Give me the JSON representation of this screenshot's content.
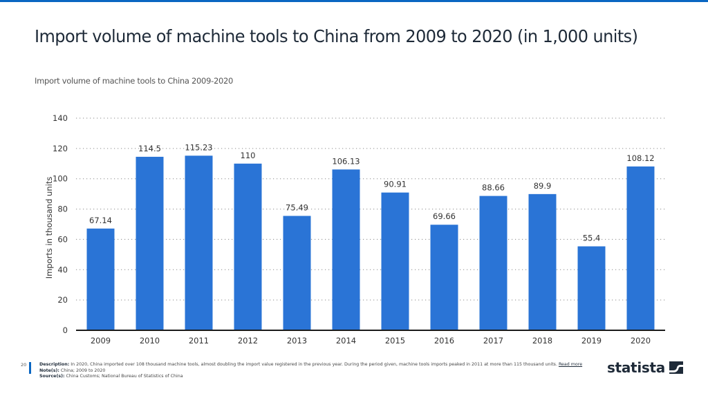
{
  "header": {
    "title": "Import volume of machine tools to China from 2009 to 2020 (in 1,000 units)",
    "subtitle": "Import volume of machine tools to China 2009-2020"
  },
  "chart_data": {
    "type": "bar",
    "title": "Import volume of machine tools to China 2009-2020",
    "xlabel": "",
    "ylabel": "Imports in thousand units",
    "categories": [
      "2009",
      "2010",
      "2011",
      "2012",
      "2013",
      "2014",
      "2015",
      "2016",
      "2017",
      "2018",
      "2019",
      "2020"
    ],
    "values": [
      67.14,
      114.5,
      115.23,
      110,
      75.49,
      106.13,
      90.91,
      69.66,
      88.66,
      89.9,
      55.4,
      108.12
    ],
    "value_labels": [
      "67.14",
      "114.5",
      "115.23",
      "110",
      "75.49",
      "106.13",
      "90.91",
      "69.66",
      "88.66",
      "89.9",
      "55.4",
      "108.12"
    ],
    "ylim": [
      0,
      140
    ],
    "yticks": [
      "0",
      "20",
      "40",
      "60",
      "80",
      "100",
      "120",
      "140"
    ],
    "ytick_values": [
      0,
      20,
      40,
      60,
      80,
      100,
      120,
      140
    ],
    "grid": true,
    "legend": "none",
    "bar_color": "#2a74d6"
  },
  "footer": {
    "page_number": "20",
    "description_label": "Description:",
    "description_text": " In 2020, China imported over 108 thousand machine tools, almost doubling the import value registered in the previous year. During the period given, machine tools imports peaked in 2011 at more than 115 thousand units. ",
    "read_more": "Read more",
    "notes_label": "Note(s):",
    "notes_text": " China; 2009 to 2020",
    "sources_label": "Source(s):",
    "sources_text": " China Customs; National Bureau of Statistics of China"
  },
  "brand": {
    "logo_text": "statista",
    "accent_color": "#0a66c2"
  }
}
